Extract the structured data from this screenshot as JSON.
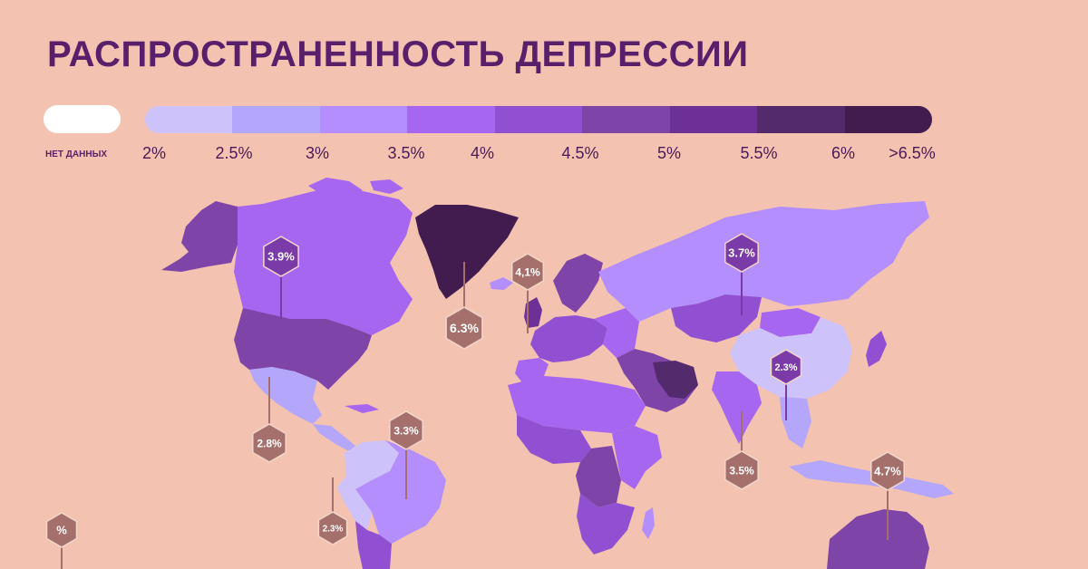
{
  "title": "РАСПРОСТРАНЕННОСТЬ ДЕПРЕССИИ",
  "legend": {
    "no_data_label": "НЕТ ДАННЫХ",
    "no_data_color": "#ffffff",
    "scale_labels": [
      "2%",
      "2.5%",
      "3%",
      "3.5%",
      "4%",
      "4.5%",
      "5%",
      "5.5%",
      "6%",
      ">6.5%"
    ],
    "scale_colors": [
      "#cdc3fa",
      "#b3a6fb",
      "#b48efd",
      "#a766f0",
      "#9150d2",
      "#7f44a8",
      "#6c3096",
      "#532a6b",
      "#421c4f"
    ]
  },
  "colors": {
    "background": "#f3c2b0",
    "title": "#5a1f6b",
    "marker_purple": "#7a3aa8",
    "marker_brown": "#a5706b",
    "marker_outline": "#f4d7cb"
  },
  "markers": [
    {
      "label": "3.9%",
      "style": "purple"
    },
    {
      "label": "6.3%",
      "style": "brown"
    },
    {
      "label": "4,1%",
      "style": "brown"
    },
    {
      "label": "3.7%",
      "style": "purple"
    },
    {
      "label": "2.3%",
      "style": "purple"
    },
    {
      "label": "2.8%",
      "style": "brown"
    },
    {
      "label": "3.3%",
      "style": "brown"
    },
    {
      "label": "3.5%",
      "style": "brown"
    },
    {
      "label": "4.7%",
      "style": "brown"
    },
    {
      "label": "2.3%",
      "style": "brown"
    },
    {
      "label": "%",
      "style": "brown"
    }
  ]
}
